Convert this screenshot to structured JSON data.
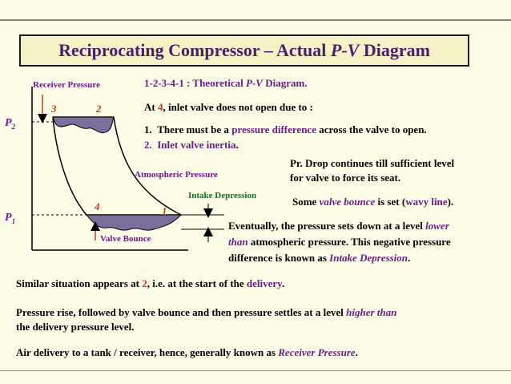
{
  "title": {
    "main": "Reciprocating Compressor – Actual ",
    "pv_p": "P",
    "pv_dash": "-",
    "pv_v": "V",
    "tail": " Diagram"
  },
  "diagram": {
    "receiver_pressure": "Receiver Pressure",
    "atmospheric_pressure": "Atmospheric Pressure",
    "intake_depression": "Intake Depression",
    "valve_bounce": "Valve Bounce",
    "p2_base": "P",
    "p2_sub": "2",
    "p1_base": "P",
    "p1_sub": "1",
    "pt1": "1",
    "pt2": "2",
    "pt3": "3",
    "pt4": "4"
  },
  "notes": {
    "l1_a": "1-2-3-4-1 : Theoretical ",
    "l1_p": "P",
    "l1_dash": "-",
    "l1_v": "V",
    "l1_b": " Diagram.",
    "l2_a": "At ",
    "l2_num": "4",
    "l2_b": ", inlet valve does not open due to :",
    "item1_num": "1.",
    "item1_a": "There must be a ",
    "item1_hl": "pressure difference",
    "item1_b": " across the valve to open.",
    "item2_num": "2.",
    "item2_text": "Inlet valve inertia",
    "item2_end": ".",
    "pr_drop_1": "Pr. Drop continues till sufficient level",
    "pr_drop_2": "for valve to force its seat.",
    "bounce_a": "Some ",
    "bounce_hl": "valve bounce",
    "bounce_b": " is set (",
    "bounce_wavy": "wavy line",
    "bounce_c": ").",
    "ev1_a": "Eventually, the pressure sets down at a level ",
    "ev1_hl": "lower",
    "ev2_hl": "than",
    "ev2_b": " atmospheric pressure. This negative pressure",
    "ev3_a": "difference is known as ",
    "ev3_hl": "Intake Depression",
    "ev3_b": ".",
    "sim_a": "Similar situation appears at ",
    "sim_num": "2",
    "sim_b": ", i.e. at the start of the ",
    "sim_hl": "delivery",
    "sim_c": ".",
    "rise1_a": "Pressure rise, followed by valve bounce and then pressure settles at a level ",
    "rise1_hl": "higher than",
    "rise2": "the delivery pressure level.",
    "air_a": "Air delivery to a tank / receiver, hence, generally known as ",
    "air_hl": "Receiver Pressure",
    "air_b": "."
  }
}
